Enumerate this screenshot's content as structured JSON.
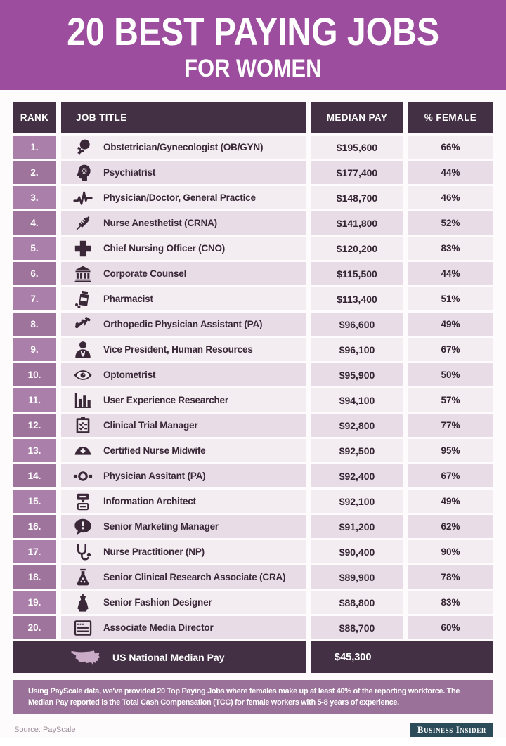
{
  "banner": {
    "title_line1": "20 BEST PAYING JOBS",
    "title_line2": "FOR WOMEN"
  },
  "chart_data": {
    "type": "table",
    "title": "20 Best Paying Jobs for Women",
    "columns": [
      "RANK",
      "JOB TITLE",
      "MEDIAN PAY",
      "% FEMALE"
    ],
    "rows": [
      {
        "rank": "1.",
        "icon": "fetus-icon",
        "title": "Obstetrician/Gynecologist (OB/GYN)",
        "pay": "$195,600",
        "pay_usd": 195600,
        "female": "66%",
        "female_pct": 66
      },
      {
        "rank": "2.",
        "icon": "psychiatrist-head-gear-icon",
        "title": "Psychiatrist",
        "pay": "$177,400",
        "pay_usd": 177400,
        "female": "44%",
        "female_pct": 44
      },
      {
        "rank": "3.",
        "icon": "heartbeat-icon",
        "title": "Physician/Doctor, General Practice",
        "pay": "$148,700",
        "pay_usd": 148700,
        "female": "46%",
        "female_pct": 46
      },
      {
        "rank": "4.",
        "icon": "syringe-icon",
        "title": "Nurse Anesthetist (CRNA)",
        "pay": "$141,800",
        "pay_usd": 141800,
        "female": "52%",
        "female_pct": 52
      },
      {
        "rank": "5.",
        "icon": "medical-cross-icon",
        "title": "Chief Nursing Officer (CNO)",
        "pay": "$120,200",
        "pay_usd": 120200,
        "female": "83%",
        "female_pct": 83
      },
      {
        "rank": "6.",
        "icon": "courthouse-icon",
        "title": "Corporate Counsel",
        "pay": "$115,500",
        "pay_usd": 115500,
        "female": "44%",
        "female_pct": 44
      },
      {
        "rank": "7.",
        "icon": "pill-bottle-icon",
        "title": "Pharmacist",
        "pay": "$113,400",
        "pay_usd": 113400,
        "female": "51%",
        "female_pct": 51
      },
      {
        "rank": "8.",
        "icon": "orthopedic-tools-icon",
        "title": "Orthopedic Physician Assistant (PA)",
        "pay": "$96,600",
        "pay_usd": 96600,
        "female": "49%",
        "female_pct": 49
      },
      {
        "rank": "9.",
        "icon": "businesswoman-icon",
        "title": "Vice President, Human Resources",
        "pay": "$96,100",
        "pay_usd": 96100,
        "female": "67%",
        "female_pct": 67
      },
      {
        "rank": "10.",
        "icon": "eye-icon",
        "title": "Optometrist",
        "pay": "$95,900",
        "pay_usd": 95900,
        "female": "50%",
        "female_pct": 50
      },
      {
        "rank": "11.",
        "icon": "bar-chart-icon",
        "title": "User Experience Researcher",
        "pay": "$94,100",
        "pay_usd": 94100,
        "female": "57%",
        "female_pct": 57
      },
      {
        "rank": "12.",
        "icon": "clipboard-checklist-icon",
        "title": "Clinical Trial Manager",
        "pay": "$92,800",
        "pay_usd": 92800,
        "female": "77%",
        "female_pct": 77
      },
      {
        "rank": "13.",
        "icon": "nurse-cap-icon",
        "title": "Certified Nurse Midwife",
        "pay": "$92,500",
        "pay_usd": 92500,
        "female": "95%",
        "female_pct": 95
      },
      {
        "rank": "14.",
        "icon": "head-mirror-icon",
        "title": "Physician Assitant (PA)",
        "pay": "$92,400",
        "pay_usd": 92400,
        "female": "67%",
        "female_pct": 67
      },
      {
        "rank": "15.",
        "icon": "sitemap-icon",
        "title": "Information Architect",
        "pay": "$92,100",
        "pay_usd": 92100,
        "female": "49%",
        "female_pct": 49
      },
      {
        "rank": "16.",
        "icon": "speech-bubble-icon",
        "title": "Senior Marketing Manager",
        "pay": "$91,200",
        "pay_usd": 91200,
        "female": "62%",
        "female_pct": 62
      },
      {
        "rank": "17.",
        "icon": "stethoscope-icon",
        "title": "Nurse Practitioner (NP)",
        "pay": "$90,400",
        "pay_usd": 90400,
        "female": "90%",
        "female_pct": 90
      },
      {
        "rank": "18.",
        "icon": "flask-icon",
        "title": "Senior Clinical Research Associate (CRA)",
        "pay": "$89,900",
        "pay_usd": 89900,
        "female": "78%",
        "female_pct": 78
      },
      {
        "rank": "19.",
        "icon": "dress-icon",
        "title": "Senior Fashion Designer",
        "pay": "$88,800",
        "pay_usd": 88800,
        "female": "83%",
        "female_pct": 83
      },
      {
        "rank": "20.",
        "icon": "browser-window-icon",
        "title": "Associate Media Director",
        "pay": "$88,700",
        "pay_usd": 88700,
        "female": "60%",
        "female_pct": 60
      }
    ],
    "footer": {
      "icon": "usa-map-icon",
      "label": "US National Median Pay",
      "pay": "$45,300",
      "pay_usd": 45300
    }
  },
  "note": "Using PayScale data, we've provided 20 Top Paying Jobs where females make up at least 40% of the reporting workforce. The Median Pay reported is the Total Cash Compensation (TCC) for female workers with 5-8 years of experience.",
  "source": "Source: PayScale",
  "logo": "Business Insider",
  "colors": {
    "banner_purple": "#9c4d9e",
    "dark_plum": "#443045",
    "rank_purple_light": "#aa7fa9",
    "rank_purple_dark": "#9e749d",
    "row_light": "#f3edf1",
    "row_dark": "#e8dde6",
    "note_purple": "#9a7198",
    "logo_teal": "#2c4b58"
  }
}
